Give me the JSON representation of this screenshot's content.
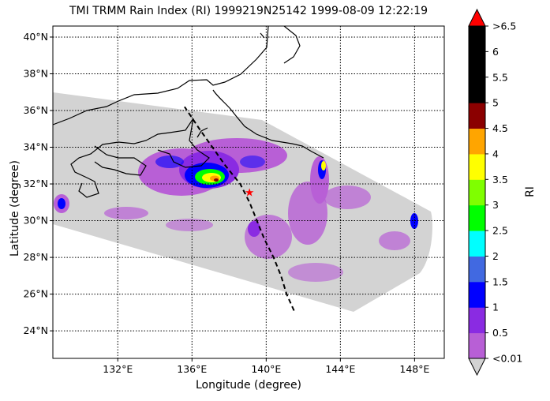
{
  "title": "TMI TRMM Rain Index (RI) 1999219N25142 1999-08-09 12:22:19",
  "xlabel": "Longitude (degree)",
  "ylabel": "Latitude (degree)",
  "colorbar": {
    "label": "RI",
    "ticks": [
      "<0.01",
      "0.5",
      "1",
      "1.5",
      "2",
      "2.5",
      "3",
      "3.5",
      "4",
      "4.5",
      "5",
      "5.5",
      "6",
      ">6.5"
    ],
    "colors": [
      "#b85fd6",
      "#8a2be2",
      "#0000ff",
      "#4169e1",
      "#00ffff",
      "#00ff00",
      "#7fff00",
      "#ffff00",
      "#ffa500",
      "#8b0000",
      "#000000",
      "#000000",
      "#000000"
    ],
    "under_color": "#d3d3d3",
    "over_color": "#ff0000"
  },
  "map": {
    "lon_range": [
      128.5,
      149.6
    ],
    "lat_range": [
      22.5,
      40.6
    ],
    "x_ticks": [
      "132°E",
      "136°E",
      "140°E",
      "144°E",
      "148°E"
    ],
    "y_ticks": [
      "24°N",
      "26°N",
      "28°N",
      "30°N",
      "32°N",
      "34°N",
      "36°N",
      "38°N",
      "40°N"
    ],
    "swath_color": "#d3d3d3",
    "track_color": "#000000",
    "storm_marker_color": "#ff0000",
    "storm_position": [
      139.1,
      31.5
    ],
    "track": [
      [
        141.5,
        25.1
      ],
      [
        141.1,
        26.0
      ],
      [
        140.8,
        27.0
      ],
      [
        140.4,
        28.0
      ],
      [
        139.9,
        29.0
      ],
      [
        139.5,
        30.0
      ],
      [
        139.1,
        31.0
      ],
      [
        138.6,
        32.0
      ],
      [
        137.8,
        33.0
      ],
      [
        137.1,
        34.0
      ],
      [
        136.4,
        35.0
      ],
      [
        136.0,
        35.6
      ],
      [
        135.6,
        36.2
      ]
    ]
  }
}
